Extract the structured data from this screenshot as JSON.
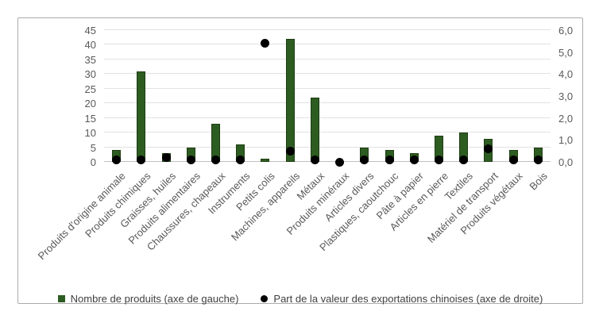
{
  "figure": {
    "background": "#ffffff",
    "border_color": "#ababab"
  },
  "chart_data": {
    "type": "bar",
    "title": "",
    "xlabel": "",
    "ylabel_left": "",
    "ylabel_right": "",
    "categories": [
      "Produits d'origine animale",
      "Produits chimiques",
      "Graisses, huiles",
      "Produits alimentaires",
      "Chaussures, chapeaux",
      "Instruments",
      "Petits colis",
      "Machines, appareils",
      "Métaux",
      "Produits minéraux",
      "Articles divers",
      "Plastiques, caoutchouc",
      "Pâte à papier",
      "Articles en pierre",
      "Textiles",
      "Matériel de transport",
      "Produits végétaux",
      "Bois"
    ],
    "series": [
      {
        "name": "Nombre de produits (axe de gauche)",
        "type": "bar",
        "axis": "left",
        "color": "#2d5c21",
        "values": [
          4,
          31,
          3,
          5,
          13,
          6,
          1,
          42,
          22,
          0,
          5,
          4,
          3,
          9,
          10,
          8,
          4,
          5
        ]
      },
      {
        "name": "Part de la valeur des exportations chinoises (axe de droite)",
        "type": "scatter",
        "axis": "right",
        "color": "#000000",
        "marker": "circle",
        "values": [
          0.1,
          0.1,
          0.2,
          0.1,
          0.1,
          0.1,
          5.4,
          0.5,
          0.1,
          0.0,
          0.1,
          0.1,
          0.1,
          0.1,
          0.1,
          0.6,
          0.1,
          0.1
        ]
      }
    ],
    "left_axis": {
      "min": 0,
      "max": 45,
      "step": 5,
      "ticks": [
        "45",
        "40",
        "35",
        "30",
        "25",
        "20",
        "15",
        "10",
        "5",
        "0"
      ]
    },
    "right_axis": {
      "min": 0,
      "max": 6,
      "step": 1,
      "ticks": [
        "6,0",
        "5,0",
        "4,0",
        "3,0",
        "2,0",
        "1,0",
        "0,0"
      ]
    },
    "grid": true,
    "gridline_color": "#e2e2e2",
    "axis_line_color": "#c0c0c0",
    "tick_color": "#595959",
    "legend_position": "bottom"
  }
}
